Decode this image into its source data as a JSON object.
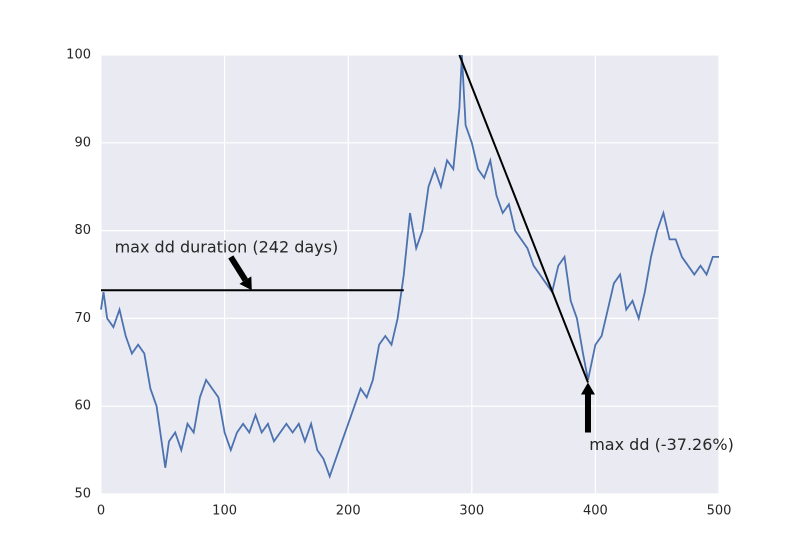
{
  "chart_data": {
    "type": "line",
    "xlim": [
      0,
      500
    ],
    "ylim": [
      50,
      100
    ],
    "xticks": [
      0,
      100,
      200,
      300,
      400,
      500
    ],
    "yticks": [
      50,
      60,
      70,
      80,
      90,
      100
    ],
    "grid": true,
    "series": [
      {
        "color": "#4c72b0",
        "x": [
          0,
          2,
          5,
          10,
          15,
          20,
          25,
          30,
          35,
          40,
          45,
          50,
          52,
          55,
          60,
          65,
          70,
          75,
          80,
          85,
          90,
          95,
          100,
          105,
          110,
          115,
          120,
          125,
          130,
          135,
          140,
          145,
          150,
          155,
          160,
          165,
          170,
          175,
          180,
          185,
          190,
          195,
          200,
          205,
          210,
          215,
          220,
          225,
          230,
          235,
          240,
          245,
          250,
          255,
          260,
          265,
          270,
          275,
          280,
          285,
          290,
          292,
          295,
          300,
          305,
          310,
          315,
          320,
          325,
          330,
          335,
          340,
          345,
          350,
          355,
          360,
          365,
          370,
          375,
          380,
          385,
          390,
          394,
          400,
          405,
          410,
          415,
          420,
          425,
          430,
          435,
          440,
          445,
          450,
          455,
          460,
          465,
          470,
          475,
          480,
          485,
          490,
          495,
          500
        ],
        "values": [
          71,
          73,
          70,
          69,
          71,
          68,
          66,
          67,
          66,
          62,
          60,
          55,
          53,
          56,
          57,
          55,
          58,
          57,
          61,
          63,
          62,
          61,
          57,
          55,
          57,
          58,
          57,
          59,
          57,
          58,
          56,
          57,
          58,
          57,
          58,
          56,
          58,
          55,
          54,
          52,
          54,
          56,
          58,
          60,
          62,
          61,
          63,
          67,
          68,
          67,
          70,
          75,
          82,
          78,
          80,
          85,
          87,
          85,
          88,
          87,
          94,
          100,
          92,
          90,
          87,
          86,
          88,
          84,
          82,
          83,
          80,
          79,
          78,
          76,
          75,
          74,
          73,
          76,
          77,
          72,
          70,
          66,
          63,
          67,
          68,
          71,
          74,
          75,
          71,
          72,
          70,
          73,
          77,
          80,
          82,
          79,
          79,
          77,
          76,
          75,
          76,
          75,
          77,
          77
        ]
      },
      {
        "color": "#000000",
        "x": [
          0,
          245
        ],
        "values": [
          73.2,
          73.2
        ]
      },
      {
        "color": "#000000",
        "x": [
          290,
          394
        ],
        "values": [
          100,
          62.7
        ]
      }
    ],
    "annotations": [
      {
        "text": "max dd duration (242 days)",
        "x": 11,
        "y": 78,
        "arrow_x": [
          105,
          122
        ],
        "arrow_y": [
          77,
          73.2
        ]
      },
      {
        "text": "max dd (-37.26%)",
        "x": 395,
        "y": 55.5,
        "arrow_x": [
          394,
          394
        ],
        "arrow_y": [
          57,
          62.7
        ]
      }
    ]
  }
}
